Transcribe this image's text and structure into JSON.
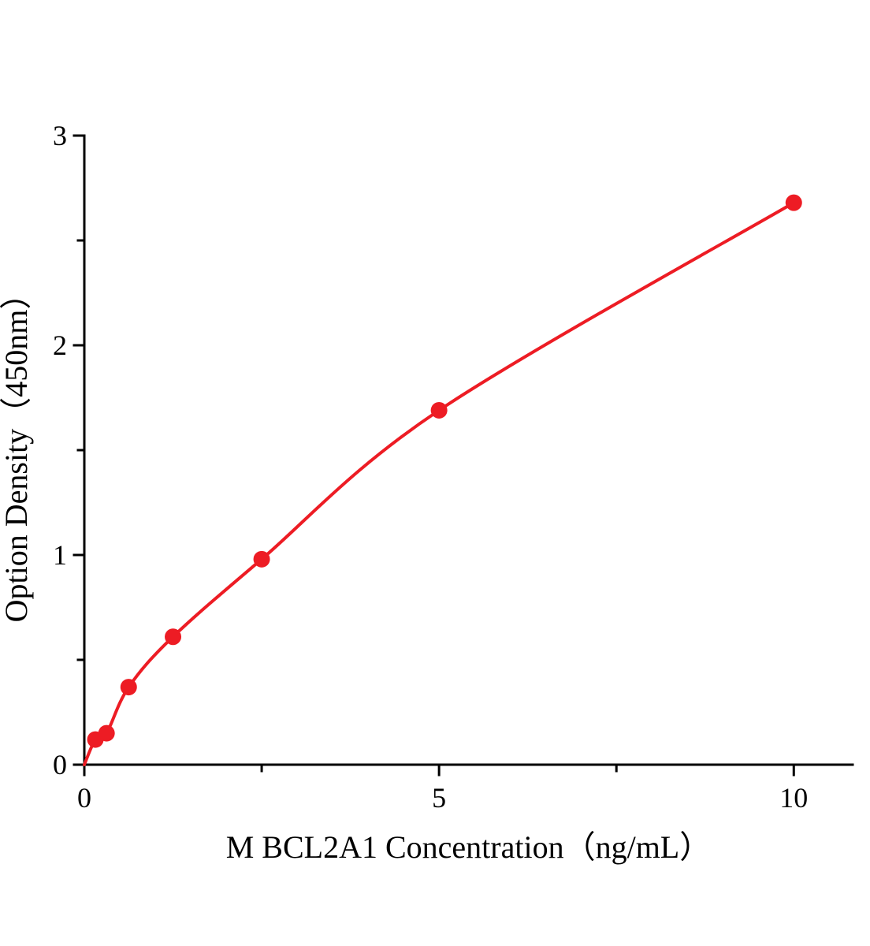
{
  "page": {
    "background": "#ffffff",
    "description": "ELISA standard curve plot"
  },
  "chart_data": {
    "type": "scatter",
    "title": "",
    "xlabel": "M BCL2A1 Concentration（ng/mL）",
    "ylabel": "Option Density（450nm）",
    "xlim": [
      0,
      10.83
    ],
    "ylim": [
      0,
      3
    ],
    "x_major_ticks": [
      0,
      5,
      10
    ],
    "x_minor_ticks": [
      2.5,
      7.5
    ],
    "y_major_ticks": [
      0,
      1,
      2,
      3
    ],
    "y_minor_ticks": [
      0.5,
      1.5,
      2.5
    ],
    "grid": false,
    "legend": "none",
    "line_color": "#ed1c24",
    "marker_color": "#ed1c24",
    "axis_color": "#000000",
    "points": [
      {
        "x": 0,
        "y": 0,
        "marker": false
      },
      {
        "x": 0.156,
        "y": 0.12,
        "marker": true
      },
      {
        "x": 0.313,
        "y": 0.15,
        "marker": true
      },
      {
        "x": 0.625,
        "y": 0.37,
        "marker": true
      },
      {
        "x": 1.25,
        "y": 0.61,
        "marker": true
      },
      {
        "x": 2.5,
        "y": 0.98,
        "marker": true
      },
      {
        "x": 5,
        "y": 1.69,
        "marker": true
      },
      {
        "x": 10,
        "y": 2.68,
        "marker": true
      }
    ]
  }
}
